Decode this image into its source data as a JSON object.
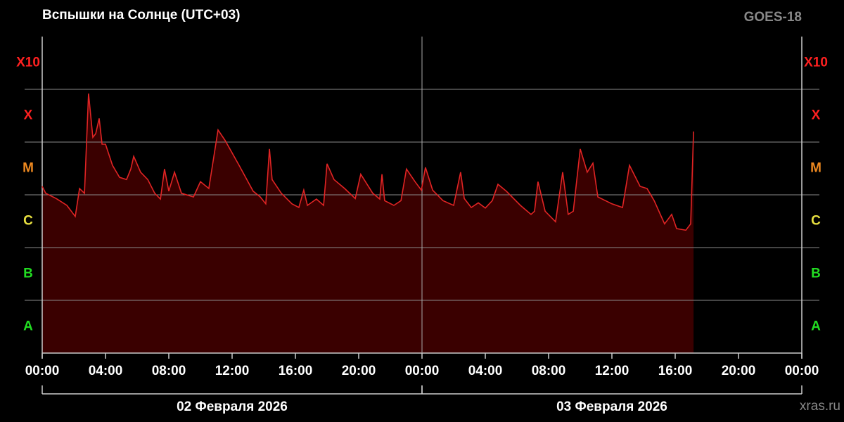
{
  "chart_data": {
    "type": "area",
    "title": "Вспышки на Солнце (UTC+03)",
    "satellite": "GOES-18",
    "source": "xras.ru",
    "color": "#e02424",
    "fill": "#3a0000",
    "background": "#000000",
    "xlim": [
      0,
      48
    ],
    "xticks": [
      {
        "value": 0,
        "label": "00:00"
      },
      {
        "value": 4,
        "label": "04:00"
      },
      {
        "value": 8,
        "label": "08:00"
      },
      {
        "value": 12,
        "label": "12:00"
      },
      {
        "value": 16,
        "label": "16:00"
      },
      {
        "value": 20,
        "label": "20:00"
      },
      {
        "value": 24,
        "label": "00:00"
      },
      {
        "value": 28,
        "label": "04:00"
      },
      {
        "value": 32,
        "label": "08:00"
      },
      {
        "value": 36,
        "label": "12:00"
      },
      {
        "value": 40,
        "label": "16:00"
      },
      {
        "value": 44,
        "label": "20:00"
      },
      {
        "value": 48,
        "label": "00:00"
      }
    ],
    "day_groups": [
      {
        "label": "02 Февраля 2026",
        "start": 0,
        "end": 24
      },
      {
        "label": "03 Февраля 2026",
        "start": 24,
        "end": 48
      }
    ],
    "ylim": [
      0,
      6
    ],
    "ygrid": [
      1,
      2,
      3,
      4,
      5
    ],
    "yticks": [
      {
        "value": 0.5,
        "label": "A"
      },
      {
        "value": 1.5,
        "label": "B"
      },
      {
        "value": 2.5,
        "label": "C"
      },
      {
        "value": 3.5,
        "label": "M"
      },
      {
        "value": 4.5,
        "label": "X"
      },
      {
        "value": 5.5,
        "label": "X10"
      }
    ],
    "ytick_colors": [
      "#22dd22",
      "#22dd22",
      "#e8e040",
      "#f08a20",
      "#ff2020",
      "#ff2020"
    ],
    "x": [
      0,
      0.22,
      0.89,
      1.56,
      2.09,
      2.36,
      2.67,
      2.93,
      3.2,
      3.38,
      3.6,
      3.78,
      4,
      4.44,
      4.89,
      5.33,
      5.6,
      5.78,
      6.22,
      6.67,
      7.11,
      7.47,
      7.73,
      8,
      8.36,
      8.8,
      9.24,
      9.56,
      10,
      10.53,
      11.11,
      11.56,
      12.44,
      13.33,
      13.78,
      14.13,
      14.36,
      14.53,
      15.11,
      15.78,
      16.22,
      16.53,
      16.76,
      17.33,
      17.78,
      18,
      18.44,
      19.11,
      19.78,
      20.13,
      20.89,
      21.33,
      21.47,
      21.64,
      22.22,
      22.67,
      23.02,
      23.56,
      23.96,
      24.22,
      24.67,
      25.33,
      26,
      26.44,
      26.67,
      27.11,
      27.56,
      28,
      28.44,
      28.8,
      29.33,
      30.22,
      30.89,
      31.11,
      31.33,
      31.78,
      32.44,
      32.89,
      33.24,
      33.56,
      34,
      34.44,
      34.8,
      35.11,
      36,
      36.67,
      37.11,
      37.78,
      38.22,
      38.67,
      39.33,
      39.78,
      40.09,
      40.67,
      40.98,
      41.16
    ],
    "values": [
      3.16,
      3.03,
      2.93,
      2.8,
      2.59,
      3.12,
      3.03,
      4.92,
      4.09,
      4.16,
      4.45,
      3.96,
      3.96,
      3.56,
      3.33,
      3.29,
      3.49,
      3.73,
      3.43,
      3.29,
      3.03,
      2.92,
      3.49,
      3.07,
      3.43,
      3.03,
      2.99,
      2.96,
      3.25,
      3.12,
      4.23,
      4.03,
      3.56,
      3.07,
      2.96,
      2.83,
      3.87,
      3.29,
      3.03,
      2.83,
      2.76,
      3.09,
      2.8,
      2.92,
      2.8,
      3.59,
      3.29,
      3.12,
      2.93,
      3.39,
      3.03,
      2.92,
      3.39,
      2.89,
      2.8,
      2.89,
      3.49,
      3.25,
      3.09,
      3.52,
      3.09,
      2.89,
      2.8,
      3.43,
      2.93,
      2.76,
      2.85,
      2.75,
      2.89,
      3.2,
      3.07,
      2.8,
      2.63,
      2.69,
      3.25,
      2.69,
      2.49,
      3.43,
      2.63,
      2.69,
      3.87,
      3.43,
      3.6,
      2.96,
      2.83,
      2.76,
      3.56,
      3.16,
      3.12,
      2.89,
      2.45,
      2.63,
      2.36,
      2.33,
      2.45,
      4.2
    ]
  }
}
